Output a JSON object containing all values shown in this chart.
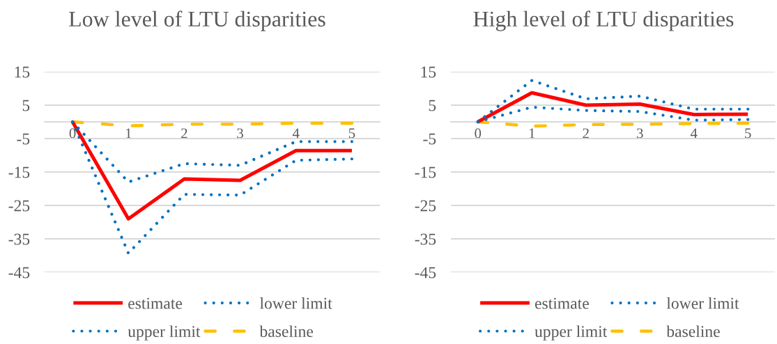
{
  "chart_data": [
    {
      "type": "line",
      "title": "Low level of LTU disparities",
      "categories": [
        "0",
        "1",
        "2",
        "3",
        "4",
        "5"
      ],
      "series": [
        {
          "name": "estimate",
          "color": "#ff0000",
          "line_style": "solid",
          "values": [
            0,
            -29.0,
            -17.1,
            -17.5,
            -8.6,
            -8.6
          ]
        },
        {
          "name": "lower limit",
          "color": "#0070c0",
          "line_style": "dotted",
          "values": [
            0,
            -39.3,
            -21.7,
            -21.9,
            -11.5,
            -11.1
          ]
        },
        {
          "name": "upper limit",
          "color": "#0070c0",
          "line_style": "dotted",
          "values": [
            0,
            -18.0,
            -12.5,
            -13.0,
            -5.9,
            -5.9
          ]
        },
        {
          "name": "baseline",
          "color": "#ffc000",
          "line_style": "dashed",
          "values": [
            0,
            -1.2,
            -0.7,
            -0.7,
            -0.4,
            -0.4
          ]
        }
      ],
      "ylim": [
        -45,
        15
      ],
      "yticks": [
        -45,
        -35,
        -25,
        -15,
        -5,
        5,
        15
      ],
      "grid": "y",
      "legend": "bottom"
    },
    {
      "type": "line",
      "title": "High level of LTU disparities",
      "categories": [
        "0",
        "1",
        "2",
        "3",
        "4",
        "5"
      ],
      "series": [
        {
          "name": "estimate",
          "color": "#ff0000",
          "line_style": "solid",
          "values": [
            0,
            8.7,
            5.0,
            5.3,
            2.2,
            2.3
          ]
        },
        {
          "name": "lower limit",
          "color": "#0070c0",
          "line_style": "dotted",
          "values": [
            0,
            4.4,
            3.4,
            3.1,
            0.5,
            0.7
          ]
        },
        {
          "name": "upper limit",
          "color": "#0070c0",
          "line_style": "dotted",
          "values": [
            0,
            12.4,
            6.9,
            7.7,
            3.8,
            3.8
          ]
        },
        {
          "name": "baseline",
          "color": "#ffc000",
          "line_style": "dashed",
          "values": [
            0,
            -1.3,
            -0.8,
            -0.7,
            -0.5,
            -0.4
          ]
        }
      ],
      "ylim": [
        -45,
        15
      ],
      "yticks": [
        -45,
        -35,
        -25,
        -15,
        -5,
        5,
        15
      ],
      "grid": "y",
      "legend": "bottom"
    }
  ]
}
